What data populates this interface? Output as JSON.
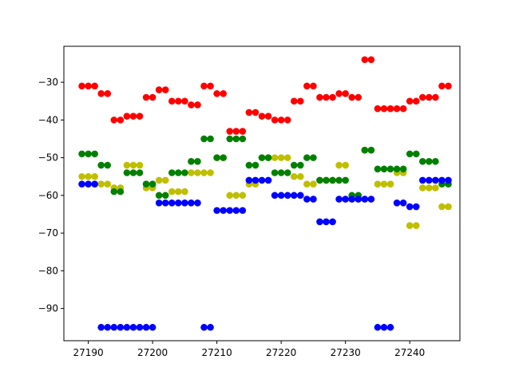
{
  "chart_data": {
    "type": "scatter",
    "title": "",
    "xlabel": "",
    "ylabel": "",
    "xlim": [
      27186.2,
      27247.8
    ],
    "ylim": [
      -98.55,
      -20.45
    ],
    "x_ticks": [
      27190,
      27200,
      27210,
      27220,
      27230,
      27240
    ],
    "y_ticks": [
      -90,
      -80,
      -70,
      -60,
      -50,
      -40,
      -30
    ],
    "grid": false,
    "series": [
      {
        "color": "#ff0000",
        "points": [
          [
            27189,
            -31
          ],
          [
            27190,
            -31
          ],
          [
            27191,
            -31
          ],
          [
            27192,
            -33
          ],
          [
            27193,
            -33
          ],
          [
            27194,
            -40
          ],
          [
            27195,
            -40
          ],
          [
            27196,
            -39
          ],
          [
            27197,
            -39
          ],
          [
            27198,
            -39
          ],
          [
            27199,
            -34
          ],
          [
            27200,
            -34
          ],
          [
            27201,
            -32
          ],
          [
            27202,
            -32
          ],
          [
            27203,
            -35
          ],
          [
            27204,
            -35
          ],
          [
            27205,
            -35
          ],
          [
            27206,
            -36
          ],
          [
            27207,
            -36
          ],
          [
            27208,
            -31
          ],
          [
            27209,
            -31
          ],
          [
            27210,
            -33
          ],
          [
            27211,
            -33
          ],
          [
            27212,
            -43
          ],
          [
            27213,
            -43
          ],
          [
            27214,
            -43
          ],
          [
            27215,
            -38
          ],
          [
            27216,
            -38
          ],
          [
            27217,
            -39
          ],
          [
            27218,
            -39
          ],
          [
            27219,
            -40
          ],
          [
            27220,
            -40
          ],
          [
            27221,
            -40
          ],
          [
            27222,
            -35
          ],
          [
            27223,
            -35
          ],
          [
            27224,
            -31
          ],
          [
            27225,
            -31
          ],
          [
            27226,
            -34
          ],
          [
            27227,
            -34
          ],
          [
            27228,
            -34
          ],
          [
            27229,
            -33
          ],
          [
            27230,
            -33
          ],
          [
            27231,
            -34
          ],
          [
            27232,
            -34
          ],
          [
            27233,
            -24
          ],
          [
            27234,
            -24
          ],
          [
            27235,
            -37
          ],
          [
            27236,
            -37
          ],
          [
            27237,
            -37
          ],
          [
            27238,
            -37
          ],
          [
            27239,
            -37
          ],
          [
            27240,
            -35
          ],
          [
            27241,
            -35
          ],
          [
            27242,
            -34
          ],
          [
            27243,
            -34
          ],
          [
            27244,
            -34
          ],
          [
            27245,
            -31
          ],
          [
            27246,
            -31
          ]
        ]
      },
      {
        "color": "#bfbf00",
        "points": [
          [
            27189,
            -55
          ],
          [
            27190,
            -55
          ],
          [
            27191,
            -55
          ],
          [
            27192,
            -57
          ],
          [
            27193,
            -57
          ],
          [
            27194,
            -58
          ],
          [
            27195,
            -58
          ],
          [
            27196,
            -52
          ],
          [
            27197,
            -52
          ],
          [
            27198,
            -52
          ],
          [
            27199,
            -58
          ],
          [
            27200,
            -58
          ],
          [
            27201,
            -56
          ],
          [
            27202,
            -56
          ],
          [
            27203,
            -59
          ],
          [
            27204,
            -59
          ],
          [
            27205,
            -59
          ],
          [
            27206,
            -54
          ],
          [
            27207,
            -54
          ],
          [
            27208,
            -54
          ],
          [
            27209,
            -54
          ],
          [
            27210,
            -50
          ],
          [
            27211,
            -50
          ],
          [
            27212,
            -60
          ],
          [
            27213,
            -60
          ],
          [
            27214,
            -60
          ],
          [
            27215,
            -57
          ],
          [
            27216,
            -57
          ],
          [
            27217,
            -50
          ],
          [
            27218,
            -50
          ],
          [
            27219,
            -50
          ],
          [
            27220,
            -50
          ],
          [
            27221,
            -50
          ],
          [
            27222,
            -55
          ],
          [
            27223,
            -55
          ],
          [
            27224,
            -57
          ],
          [
            27225,
            -57
          ],
          [
            27226,
            -56
          ],
          [
            27227,
            -56
          ],
          [
            27228,
            -56
          ],
          [
            27229,
            -52
          ],
          [
            27230,
            -52
          ],
          [
            27231,
            -61
          ],
          [
            27232,
            -61
          ],
          [
            27233,
            -48
          ],
          [
            27234,
            -48
          ],
          [
            27235,
            -57
          ],
          [
            27236,
            -57
          ],
          [
            27237,
            -57
          ],
          [
            27238,
            -54
          ],
          [
            27239,
            -54
          ],
          [
            27240,
            -68
          ],
          [
            27241,
            -68
          ],
          [
            27242,
            -58
          ],
          [
            27243,
            -58
          ],
          [
            27244,
            -58
          ],
          [
            27245,
            -63
          ],
          [
            27246,
            -63
          ]
        ]
      },
      {
        "color": "#008000",
        "points": [
          [
            27189,
            -49
          ],
          [
            27190,
            -49
          ],
          [
            27191,
            -49
          ],
          [
            27192,
            -52
          ],
          [
            27193,
            -52
          ],
          [
            27194,
            -59
          ],
          [
            27195,
            -59
          ],
          [
            27196,
            -54
          ],
          [
            27197,
            -54
          ],
          [
            27198,
            -54
          ],
          [
            27199,
            -57
          ],
          [
            27200,
            -57
          ],
          [
            27201,
            -60
          ],
          [
            27202,
            -60
          ],
          [
            27203,
            -54
          ],
          [
            27204,
            -54
          ],
          [
            27205,
            -54
          ],
          [
            27206,
            -51
          ],
          [
            27207,
            -51
          ],
          [
            27208,
            -45
          ],
          [
            27209,
            -45
          ],
          [
            27210,
            -50
          ],
          [
            27211,
            -50
          ],
          [
            27212,
            -45
          ],
          [
            27213,
            -45
          ],
          [
            27214,
            -45
          ],
          [
            27215,
            -52
          ],
          [
            27216,
            -52
          ],
          [
            27217,
            -50
          ],
          [
            27218,
            -50
          ],
          [
            27219,
            -54
          ],
          [
            27220,
            -54
          ],
          [
            27221,
            -54
          ],
          [
            27222,
            -52
          ],
          [
            27223,
            -52
          ],
          [
            27224,
            -50
          ],
          [
            27225,
            -50
          ],
          [
            27226,
            -56
          ],
          [
            27227,
            -56
          ],
          [
            27228,
            -56
          ],
          [
            27229,
            -56
          ],
          [
            27230,
            -56
          ],
          [
            27231,
            -60
          ],
          [
            27232,
            -60
          ],
          [
            27233,
            -48
          ],
          [
            27234,
            -48
          ],
          [
            27235,
            -53
          ],
          [
            27236,
            -53
          ],
          [
            27237,
            -53
          ],
          [
            27238,
            -53
          ],
          [
            27239,
            -53
          ],
          [
            27240,
            -49
          ],
          [
            27241,
            -49
          ],
          [
            27242,
            -51
          ],
          [
            27243,
            -51
          ],
          [
            27244,
            -51
          ],
          [
            27245,
            -57
          ],
          [
            27246,
            -57
          ]
        ]
      },
      {
        "color": "#0000ff",
        "points": [
          [
            27189,
            -57
          ],
          [
            27190,
            -57
          ],
          [
            27191,
            -57
          ],
          [
            27192,
            -95
          ],
          [
            27193,
            -95
          ],
          [
            27194,
            -95
          ],
          [
            27195,
            -95
          ],
          [
            27196,
            -95
          ],
          [
            27197,
            -95
          ],
          [
            27198,
            -95
          ],
          [
            27199,
            -95
          ],
          [
            27200,
            -95
          ],
          [
            27201,
            -62
          ],
          [
            27202,
            -62
          ],
          [
            27203,
            -62
          ],
          [
            27204,
            -62
          ],
          [
            27205,
            -62
          ],
          [
            27206,
            -62
          ],
          [
            27207,
            -62
          ],
          [
            27208,
            -95
          ],
          [
            27209,
            -95
          ],
          [
            27210,
            -64
          ],
          [
            27211,
            -64
          ],
          [
            27212,
            -64
          ],
          [
            27213,
            -64
          ],
          [
            27214,
            -64
          ],
          [
            27215,
            -56
          ],
          [
            27216,
            -56
          ],
          [
            27217,
            -56
          ],
          [
            27218,
            -56
          ],
          [
            27219,
            -60
          ],
          [
            27220,
            -60
          ],
          [
            27221,
            -60
          ],
          [
            27222,
            -60
          ],
          [
            27223,
            -60
          ],
          [
            27224,
            -61
          ],
          [
            27225,
            -61
          ],
          [
            27226,
            -67
          ],
          [
            27227,
            -67
          ],
          [
            27228,
            -67
          ],
          [
            27229,
            -61
          ],
          [
            27230,
            -61
          ],
          [
            27231,
            -61
          ],
          [
            27232,
            -61
          ],
          [
            27233,
            -61
          ],
          [
            27234,
            -61
          ],
          [
            27235,
            -95
          ],
          [
            27236,
            -95
          ],
          [
            27237,
            -95
          ],
          [
            27238,
            -62
          ],
          [
            27239,
            -62
          ],
          [
            27240,
            -63
          ],
          [
            27241,
            -63
          ],
          [
            27242,
            -56
          ],
          [
            27243,
            -56
          ],
          [
            27244,
            -56
          ],
          [
            27245,
            -56
          ],
          [
            27246,
            -56
          ]
        ]
      }
    ]
  }
}
